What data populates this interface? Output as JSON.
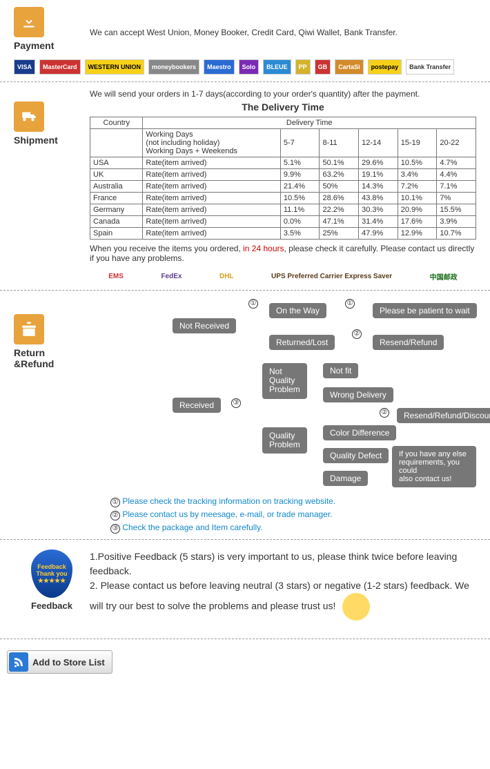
{
  "payment": {
    "title": "Payment",
    "text": "We can accept West Union, Money Booker, Credit Card, Qiwi Wallet, Bank Transfer.",
    "logos": [
      "VISA",
      "MasterCard",
      "WESTERN UNION",
      "moneybookers",
      "Maestro",
      "Solo",
      "BLEUE",
      "PP",
      "GB",
      "CartaSi",
      "postepay",
      "Bank Transfer"
    ],
    "logo_colors": [
      "#1a3c8c",
      "#cc3333",
      "#f7d117",
      "#888888",
      "#2a6bd4",
      "#7a2bb3",
      "#2a8bd4",
      "#d4b32a",
      "#cc3333",
      "#d48a2a",
      "#f7d117",
      "#ffffff"
    ]
  },
  "shipment": {
    "title": "Shipment",
    "intro": "We will send your orders in 1-7 days(according to your order's quantity) after the payment.",
    "table_title": "The Delivery Time",
    "header_country": "Country",
    "header_delivery": "Delivery Time",
    "row2a": "Working Days\n(not including holiday)\nWorking Days + Weekends",
    "periods": [
      "5-7",
      "8-11",
      "12-14",
      "15-19",
      "20-22"
    ],
    "rows": [
      {
        "c": "USA",
        "label": "Rate(item arrived)",
        "v": [
          "5.1%",
          "50.1%",
          "29.6%",
          "10.5%",
          "4.7%"
        ]
      },
      {
        "c": "UK",
        "label": "Rate(item arrived)",
        "v": [
          "9.9%",
          "63.2%",
          "19.1%",
          "3.4%",
          "4.4%"
        ]
      },
      {
        "c": "Australia",
        "label": "Rate(item arrived)",
        "v": [
          "21.4%",
          "50%",
          "14.3%",
          "7.2%",
          "7.1%"
        ]
      },
      {
        "c": "France",
        "label": "Rate(item arrived)",
        "v": [
          "10.5%",
          "28.6%",
          "43.8%",
          "10.1%",
          "7%"
        ]
      },
      {
        "c": "Germany",
        "label": "Rate(item arrived)",
        "v": [
          "11.1%",
          "22.2%",
          "30.3%",
          "20.9%",
          "15.5%"
        ]
      },
      {
        "c": "Canada",
        "label": "Rate(item arrived)",
        "v": [
          "0.0%",
          "47.1%",
          "31.4%",
          "17.6%",
          "3.9%"
        ]
      },
      {
        "c": "Spain",
        "label": "Rate(item arrived)",
        "v": [
          "3.5%",
          "25%",
          "47.9%",
          "12.9%",
          "10.7%"
        ]
      }
    ],
    "note1a": "When you receive the items you ordered, ",
    "note1b": "in 24 hours",
    "note1c": ", please check it carefully. Please contact us directly if you have any problems.",
    "carriers": [
      "EMS",
      "FedEx",
      "DHL",
      "UPS Preferred Carrier Express Saver",
      "中国邮政"
    ]
  },
  "return": {
    "title": "Return &Refund",
    "nodes": {
      "not_received": "Not Received",
      "received": "Received",
      "on_the_way": "On the Way",
      "returned": "Returned/Lost",
      "wait": "Please be patient to wait",
      "resend1": "Resend/Refund",
      "nqp": "Not\nQuality\nProblem",
      "qp": "Quality\nProblem",
      "not_fit": "Not fit",
      "wrong": "Wrong Delivery",
      "color": "Color Difference",
      "defect": "Quality Defect",
      "damage": "Damage",
      "resend2": "Resend/Refund/Discount",
      "else": "If you have any else\nrequirements, you could\nalso contact us!"
    },
    "m1": "①",
    "m2": "②",
    "m3": "③",
    "tips": [
      "Please check the tracking information on tracking website.",
      "Please contact us by meesage, e-mail, or trade manager.",
      "Check the package and Item carefully."
    ]
  },
  "feedback": {
    "title": "Feedback",
    "badge": "Feedback\nThank you",
    "line1": "1.Positive Feedback (5 stars) is very important to us, please think twice before leaving feedback.",
    "line2": "2. Please contact us before leaving neutral (3 stars) or negative (1-2 stars) feedback. We will try our best to solve the problems and please trust us!"
  },
  "store_button": "Add to Store List"
}
